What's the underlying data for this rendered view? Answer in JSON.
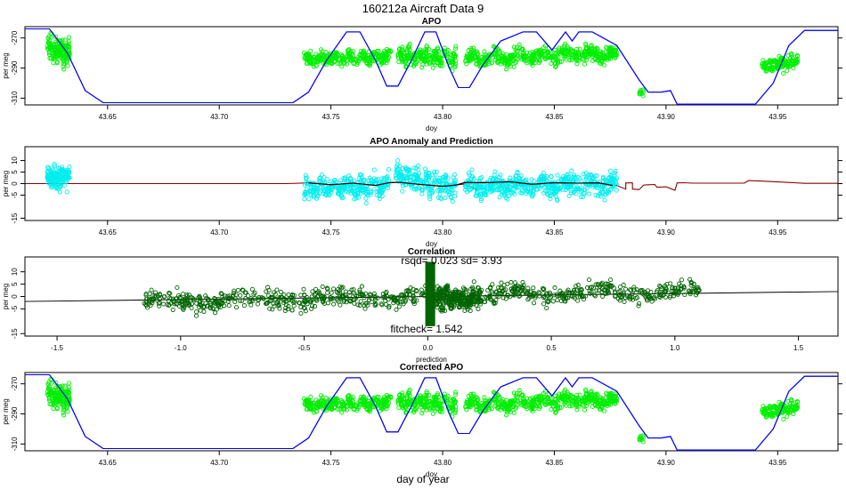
{
  "figure": {
    "title": "160212a   Aircraft Data 9",
    "bottom_label": "day of year"
  },
  "colors": {
    "blue_line": "#0000ff",
    "bright_green": "#00ee00",
    "cyan": "#00eeee",
    "dark_green": "#006400",
    "dark_red": "#8b0000",
    "black": "#000000"
  },
  "chart_data": [
    {
      "id": "apo",
      "type": "scatter",
      "title": "APO",
      "xlabel": "doy",
      "ylabel": "per meg",
      "xlim": [
        43.613,
        43.977
      ],
      "ylim": [
        -314.5,
        -262.5
      ],
      "xticks": [
        43.65,
        43.7,
        43.75,
        43.8,
        43.85,
        43.9,
        43.95
      ],
      "xtick_labels": [
        "43.65",
        "43.70",
        "43.75",
        "43.80",
        "43.85",
        "43.90",
        "43.95"
      ],
      "yticks": [
        -270,
        -290,
        -310
      ],
      "ytick_labels": [
        "-270",
        "-290",
        "-310"
      ],
      "series": [
        {
          "name": "altitude profile",
          "kind": "line",
          "color": "#0000ff",
          "x": [
            43.613,
            43.624,
            43.632,
            43.64,
            43.648,
            43.733,
            43.74,
            43.748,
            43.757,
            43.763,
            43.77,
            43.775,
            43.78,
            43.786,
            43.792,
            43.797,
            43.803,
            43.807,
            43.812,
            43.818,
            43.826,
            43.836,
            43.842,
            43.849,
            43.855,
            43.858,
            43.861,
            43.864,
            43.867,
            43.878,
            43.888,
            43.892,
            43.898,
            43.902,
            43.905,
            43.908,
            43.94,
            43.948,
            43.955,
            43.962,
            43.977
          ],
          "y": [
            -264,
            -264,
            -280,
            -305,
            -313,
            -313,
            -306,
            -285,
            -266,
            -266,
            -285,
            -302,
            -302,
            -285,
            -266,
            -266,
            -290,
            -303,
            -303,
            -288,
            -272,
            -266,
            -266,
            -278,
            -266,
            -272,
            -266,
            -266,
            -266,
            -275,
            -298,
            -306,
            -306,
            -305,
            -314,
            -314,
            -314,
            -300,
            -275,
            -265,
            -265
          ]
        },
        {
          "name": "APO measured",
          "kind": "points",
          "color": "#00ee00",
          "clusters": [
            {
              "x": [
                43.623,
                43.633
              ],
              "y_center": -278,
              "y_spread": 10,
              "slope": -1.2,
              "n": 160
            },
            {
              "x": [
                43.738,
                43.777
              ],
              "y_center": -283,
              "y_spread": 6,
              "slope": 0.6,
              "n": 300
            },
            {
              "x": [
                43.78,
                43.806
              ],
              "y_center": -283,
              "y_spread": 8,
              "slope": -0.4,
              "n": 220
            },
            {
              "x": [
                43.81,
                43.878
              ],
              "y_center": -282,
              "y_spread": 7,
              "slope": 0.8,
              "n": 520
            },
            {
              "x": [
                43.888,
                43.89
              ],
              "y_center": -306,
              "y_spread": 4,
              "slope": 0,
              "n": 10
            },
            {
              "x": [
                43.943,
                43.959
              ],
              "y_center": -287,
              "y_spread": 6,
              "slope": 0.9,
              "n": 150
            }
          ]
        }
      ]
    },
    {
      "id": "anomaly",
      "type": "scatter",
      "title": "APO Anomaly and Prediction",
      "xlabel": "doy",
      "ylabel": "per meg",
      "xlim": [
        43.613,
        43.977
      ],
      "ylim": [
        -16,
        16
      ],
      "xticks": [
        43.65,
        43.7,
        43.75,
        43.8,
        43.85,
        43.9,
        43.95
      ],
      "xtick_labels": [
        "43.65",
        "43.70",
        "43.75",
        "43.80",
        "43.85",
        "43.90",
        "43.95"
      ],
      "yticks": [
        10,
        5,
        0,
        -5,
        -15
      ],
      "ytick_labels": [
        "10",
        "5",
        "0",
        "-5",
        "-15"
      ],
      "series": [
        {
          "name": "prediction",
          "kind": "line",
          "color": "#8b0000",
          "x": [
            43.613,
            43.73,
            43.74,
            43.75,
            43.76,
            43.77,
            43.776,
            43.78,
            43.79,
            43.8,
            43.806,
            43.81,
            43.815,
            43.816,
            43.82,
            43.83,
            43.84,
            43.85,
            43.86,
            43.87,
            43.878,
            43.882,
            43.882,
            43.885,
            43.885,
            43.888,
            43.89,
            43.892,
            43.895,
            43.896,
            43.9,
            43.904,
            43.905,
            43.908,
            43.912,
            43.935,
            43.937,
            43.945,
            43.955,
            43.962,
            43.977
          ],
          "y": [
            0,
            0,
            0.3,
            -0.5,
            0.2,
            -0.8,
            0.4,
            0.6,
            -0.4,
            -1.2,
            -0.6,
            -0.2,
            -2.6,
            0.6,
            0.5,
            0.8,
            -0.3,
            0.4,
            0.2,
            0.3,
            -0.8,
            -2.4,
            0.3,
            0.3,
            -2.4,
            -2.6,
            -0.6,
            -0.5,
            -0.4,
            -1.6,
            -1.4,
            -2.9,
            0.3,
            0.4,
            0.2,
            0.2,
            1.3,
            1.0,
            0.5,
            0.1,
            0.1
          ]
        },
        {
          "name": "anomaly",
          "kind": "points",
          "color": "#00eeee",
          "clusters": [
            {
              "x": [
                43.623,
                43.633
              ],
              "y_center": 2.5,
              "y_spread": 6,
              "slope": 0,
              "n": 160
            },
            {
              "x": [
                43.738,
                43.776
              ],
              "y_center": -1.5,
              "y_spread": 6,
              "slope": 0.5,
              "n": 300
            },
            {
              "x": [
                43.779,
                43.806
              ],
              "y_center": 0.5,
              "y_spread": 7,
              "slope": -1.5,
              "n": 220
            },
            {
              "x": [
                43.81,
                43.878
              ],
              "y_center": -0.8,
              "y_spread": 6,
              "slope": 0.3,
              "n": 520
            }
          ]
        },
        {
          "name": "prediction within data",
          "kind": "line",
          "color": "#000000",
          "x": [
            43.74,
            43.75,
            43.76,
            43.77,
            43.776,
            43.78,
            43.79,
            43.8,
            43.806,
            43.81,
            43.82,
            43.83,
            43.84,
            43.85,
            43.86,
            43.87,
            43.876
          ],
          "y": [
            0.3,
            -0.5,
            0.2,
            -0.8,
            0.4,
            0.6,
            -0.4,
            -1.2,
            -0.6,
            0.5,
            0.4,
            0.8,
            -0.3,
            0.4,
            0.2,
            0.3,
            -0.8
          ]
        }
      ]
    },
    {
      "id": "correlation",
      "type": "scatter",
      "title": "Correlation",
      "xlabel": "prediction",
      "ylabel": "per meg",
      "xlim": [
        -1.63,
        1.66
      ],
      "ylim": [
        -16,
        16
      ],
      "xticks": [
        -1.5,
        -1.0,
        -0.5,
        0.0,
        0.5,
        1.0,
        1.5
      ],
      "xtick_labels": [
        "-1.5",
        "-1.0",
        "-0.5",
        "0.0",
        "0.5",
        "1.0",
        "1.5"
      ],
      "yticks": [
        10,
        5,
        0,
        -5,
        -15
      ],
      "ytick_labels": [
        "10",
        "5",
        "0",
        "-5",
        "-15"
      ],
      "annotations": {
        "stats": "rsqd= 0.023 sd= 3.93",
        "fitcheck": "fitcheck= 1.542"
      },
      "fit_line": {
        "x": [
          -1.63,
          1.66
        ],
        "y": [
          -2.0,
          2.0
        ]
      },
      "series": [
        {
          "name": "points",
          "kind": "points",
          "color": "#006400",
          "clusters": [
            {
              "x": [
                -1.15,
                1.1
              ],
              "y_center": 0,
              "y_spread": 5,
              "slope": 1.2,
              "n": 900
            },
            {
              "x": [
                0.0,
                0.22
              ],
              "y_center": -1,
              "y_spread": 6,
              "slope": 0,
              "n": 250
            }
          ]
        },
        {
          "name": "zero band",
          "kind": "bar_band",
          "color": "#006400",
          "x": [
            -0.01,
            0.03
          ],
          "y": [
            -12,
            14
          ]
        }
      ]
    },
    {
      "id": "corrected",
      "type": "scatter",
      "title": "Corrected APO",
      "xlabel": "doy",
      "ylabel": "per meg",
      "xlim": [
        43.613,
        43.977
      ],
      "ylim": [
        -314.5,
        -262.5
      ],
      "xticks": [
        43.65,
        43.7,
        43.75,
        43.8,
        43.85,
        43.9,
        43.95
      ],
      "xtick_labels": [
        "43.65",
        "43.70",
        "43.75",
        "43.80",
        "43.85",
        "43.90",
        "43.95"
      ],
      "yticks": [
        -270,
        -290,
        -310
      ],
      "ytick_labels": [
        "-270",
        "-290",
        "-310"
      ],
      "series_from": "apo"
    }
  ]
}
